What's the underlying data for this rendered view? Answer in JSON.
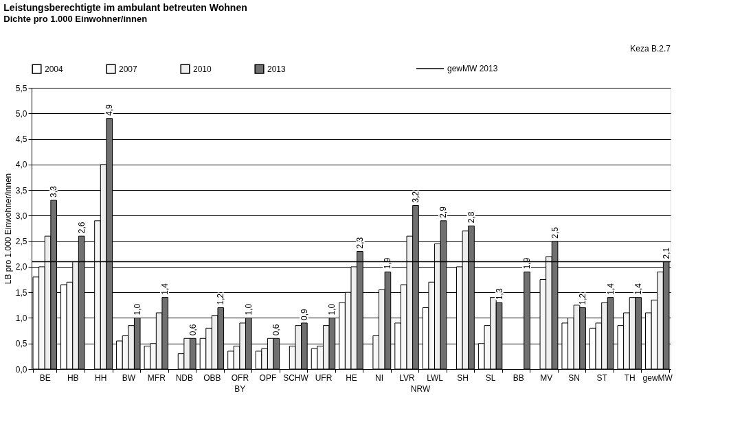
{
  "chart_data": {
    "type": "bar",
    "title": "Leistungsberechtigte im ambulant betreuten Wohnen",
    "subtitle": "Dichte pro 1.000 Einwohner/innen",
    "ylabel": "LB pro 1.000 Einwohner/innen",
    "categories": [
      "BE",
      "HB",
      "HH",
      "BW",
      "MFR",
      "NDB",
      "OBB",
      "OFR",
      "OPF",
      "SCHW",
      "UFR",
      "HE",
      "NI",
      "LVR",
      "LWL",
      "SH",
      "SL",
      "BB",
      "MV",
      "SN",
      "ST",
      "TH",
      "gewMW"
    ],
    "series": [
      {
        "name": "2004",
        "color": "#ffffff",
        "values": [
          1.8,
          1.65,
          null,
          0.55,
          0.45,
          null,
          0.6,
          0.35,
          0.35,
          null,
          0.4,
          1.3,
          null,
          0.9,
          1.2,
          null,
          0.5,
          null,
          null,
          0.9,
          0.8,
          0.85,
          1.1
        ]
      },
      {
        "name": "2007",
        "color": "#f7f7f7",
        "values": [
          2.0,
          1.7,
          2.9,
          0.65,
          0.5,
          0.3,
          0.8,
          0.45,
          0.4,
          0.45,
          0.45,
          1.5,
          0.65,
          1.65,
          1.7,
          2.0,
          0.85,
          null,
          1.75,
          1.0,
          0.9,
          1.1,
          1.35
        ]
      },
      {
        "name": "2010",
        "color": "#eeeeee",
        "values": [
          2.6,
          2.1,
          4.0,
          0.85,
          1.1,
          0.6,
          1.05,
          0.9,
          0.6,
          0.85,
          0.85,
          2.0,
          1.55,
          2.6,
          2.45,
          2.7,
          1.4,
          null,
          2.2,
          1.25,
          1.3,
          1.4,
          1.9
        ]
      },
      {
        "name": "2013",
        "color": "#707070",
        "values": [
          3.3,
          2.6,
          4.9,
          1.0,
          1.4,
          0.6,
          1.2,
          1.0,
          0.6,
          0.9,
          1.0,
          2.3,
          1.9,
          3.2,
          2.9,
          2.8,
          1.3,
          1.9,
          2.5,
          1.2,
          1.4,
          1.4,
          2.1
        ],
        "value_labels": [
          "3,3",
          "2,6",
          "4,9",
          "1,0",
          "1,4",
          "0,6",
          "1,2",
          "1,0",
          "0,6",
          "0,9",
          "1,0",
          "2,3",
          "1,9",
          "3,2",
          "2,9",
          "2,8",
          "1,3",
          "1,9",
          "2,5",
          "1,2",
          "1,4",
          "1,4",
          "2,1"
        ]
      }
    ],
    "ylim": [
      0,
      5.5
    ],
    "yticks": [
      {
        "value": 0,
        "label": "0,0"
      },
      {
        "value": 0.5,
        "label": "0,5"
      },
      {
        "value": 1,
        "label": "1,0"
      },
      {
        "value": 1.5,
        "label": "1,5"
      },
      {
        "value": 2,
        "label": "2,0"
      },
      {
        "value": 2.5,
        "label": "2,5"
      },
      {
        "value": 3,
        "label": "3,0"
      },
      {
        "value": 3.5,
        "label": "3,5"
      },
      {
        "value": 4,
        "label": "4,0"
      },
      {
        "value": 4.5,
        "label": "4,5"
      },
      {
        "value": 5,
        "label": "5,0"
      },
      {
        "value": 5.5,
        "label": "5,5"
      }
    ],
    "ref_lines": [
      {
        "axis": "y",
        "value": 2.1,
        "label": "gewMW 2013",
        "color": "#000000",
        "line_style": "solid"
      }
    ],
    "grid": "y",
    "legend": "top left",
    "annotations": [
      "Keza B.2.7",
      "BY",
      "NRW"
    ]
  }
}
